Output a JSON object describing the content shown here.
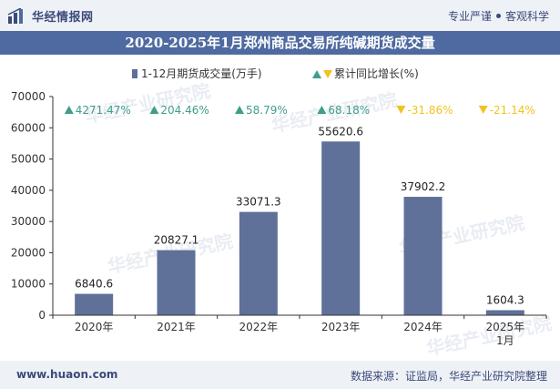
{
  "brand": {
    "name": "华经情报网",
    "slogan_a": "专业严谨",
    "slogan_b": "客观科学"
  },
  "title": "2020-2025年1月郑州商品交易所纯碱期货成交量",
  "footer": {
    "website": "www.huaon.com",
    "source": "数据来源：证监局，华经产业研究院整理"
  },
  "watermark": {
    "text": "华经产业研究院",
    "text2": "www.huaon.com"
  },
  "colors": {
    "bar": "#5f7099",
    "up": "#3f9e8a",
    "down": "#f2c320",
    "brand": "#3b4a7a"
  },
  "chart_data": {
    "type": "bar",
    "categories": [
      "2020年",
      "2021年",
      "2022年",
      "2023年",
      "2024年",
      "2025年\n1月"
    ],
    "series": [
      {
        "name": "1-12月期货成交量(万手)",
        "values": [
          6840.6,
          20827.1,
          33071.3,
          55620.6,
          37902.2,
          1604.3
        ],
        "value_labels": [
          "6840.6",
          "20827.1",
          "33071.3",
          "55620.6",
          "37902.2",
          "1604.3"
        ]
      },
      {
        "name": "累计同比增长(%)",
        "values": [
          4271.47,
          204.46,
          58.79,
          68.18,
          -31.86,
          -21.14
        ],
        "labels": [
          "4271.47%",
          "204.46%",
          "58.79%",
          "68.18%",
          "-31.86%",
          "-21.14%"
        ]
      }
    ],
    "ylim": [
      0,
      70000
    ],
    "yticks": [
      0,
      10000,
      20000,
      30000,
      40000,
      50000,
      60000,
      70000
    ],
    "legend_position": "top-center",
    "grid": false
  }
}
